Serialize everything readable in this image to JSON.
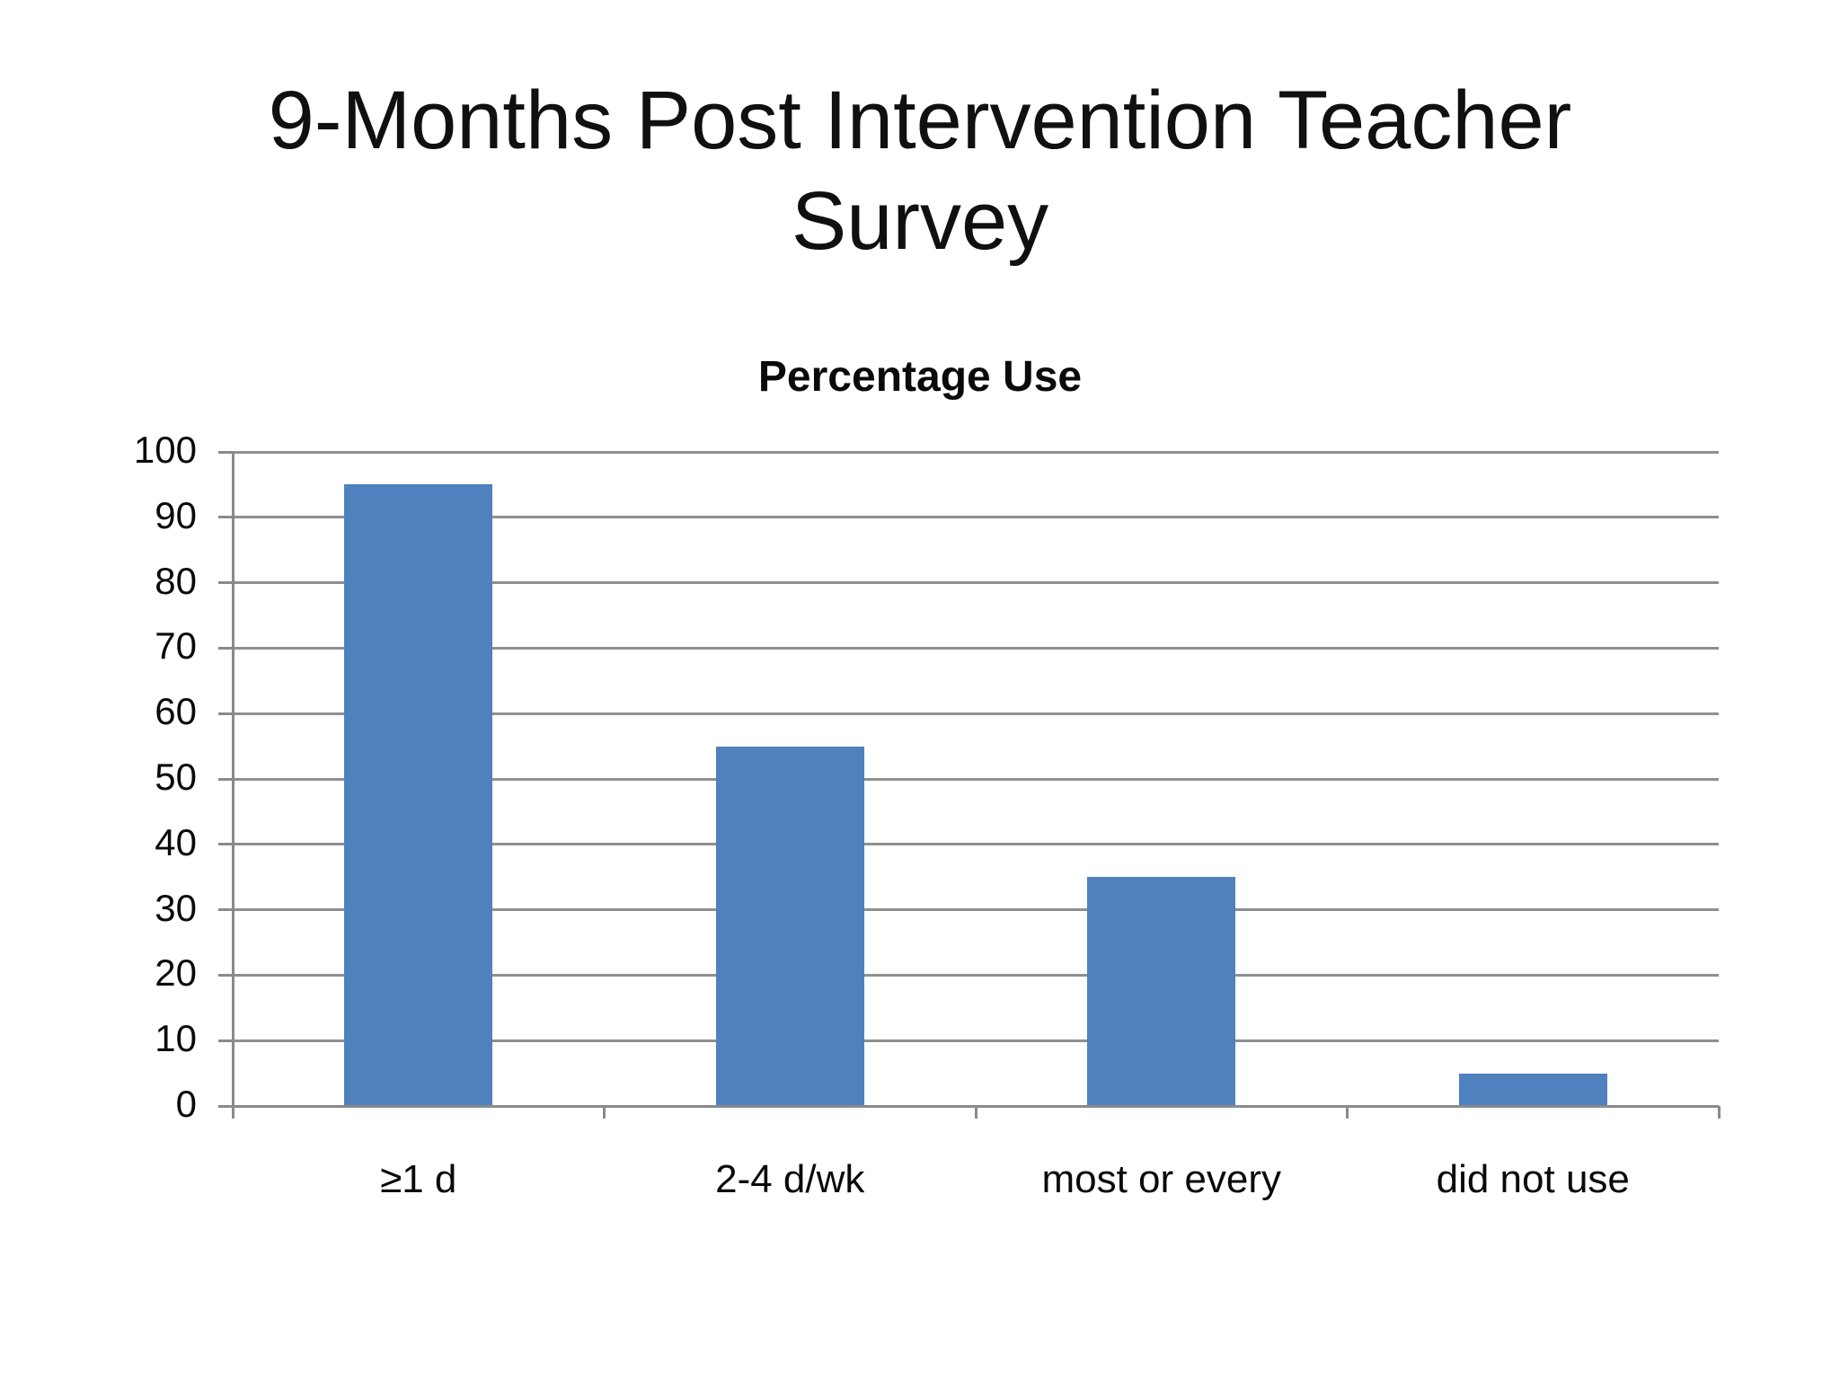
{
  "slide": {
    "title_line1": "9-Months Post Intervention Teacher",
    "title_line2": "Survey"
  },
  "chart_data": {
    "type": "bar",
    "title": "Percentage Use",
    "categories": [
      "≥1 d",
      "2-4 d/wk",
      "most or every",
      "did not use"
    ],
    "values": [
      95,
      55,
      35,
      5
    ],
    "xlabel": "",
    "ylabel": "",
    "ylim": [
      0,
      100
    ],
    "ytick_step": 10,
    "yticks": [
      0,
      10,
      20,
      30,
      40,
      50,
      60,
      70,
      80,
      90,
      100
    ],
    "grid": true,
    "legend": "none",
    "bar_color": "#4F81BE",
    "gridline_color": "#8f8f8f",
    "axis_color": "#8a8a8a",
    "text_color": "#0a0a0a"
  }
}
